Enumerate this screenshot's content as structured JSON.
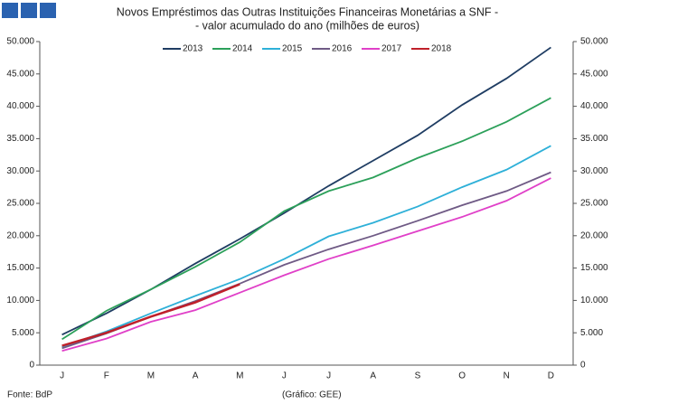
{
  "chart_data": {
    "type": "line",
    "title": "Novos Empréstimos das Outras Instituições Financeiras Monetárias a SNF -",
    "subtitle": "- valor acumulado do ano (milhões de euros)",
    "categories": [
      "J",
      "F",
      "M",
      "A",
      "M",
      "J",
      "J",
      "A",
      "S",
      "O",
      "N",
      "D"
    ],
    "series": [
      {
        "name": "2013",
        "color": "#1f3d63",
        "values": [
          4700,
          8000,
          11700,
          15700,
          19500,
          23500,
          27700,
          31600,
          35500,
          40200,
          44300,
          49100
        ]
      },
      {
        "name": "2014",
        "color": "#2ca05a",
        "values": [
          4000,
          8400,
          11700,
          15200,
          19000,
          23800,
          26900,
          29000,
          32000,
          34600,
          37600,
          41300
        ]
      },
      {
        "name": "2015",
        "color": "#2eb0d8",
        "values": [
          2800,
          5200,
          8000,
          10700,
          13300,
          16400,
          19900,
          22000,
          24500,
          27500,
          30200,
          33900
        ]
      },
      {
        "name": "2016",
        "color": "#6f5a85",
        "values": [
          2600,
          4900,
          7500,
          9900,
          12600,
          15500,
          17900,
          20000,
          22300,
          24700,
          26900,
          29800
        ]
      },
      {
        "name": "2017",
        "color": "#e040c8",
        "values": [
          2200,
          4100,
          6700,
          8500,
          11200,
          13900,
          16400,
          18500,
          20700,
          22900,
          25400,
          28900
        ]
      },
      {
        "name": "2018",
        "color": "#c0202a",
        "values": [
          3000,
          5000,
          7500,
          9700,
          12500,
          null,
          null,
          null,
          null,
          null,
          null,
          null
        ]
      }
    ],
    "ylim": [
      0,
      50000
    ],
    "yticks": [
      0,
      {
        "value": 5000,
        "label": "5.000"
      },
      {
        "value": 10000,
        "label": "10.000"
      },
      {
        "value": 15000,
        "label": "15.000"
      },
      {
        "value": 20000,
        "label": "20.000"
      },
      {
        "value": 25000,
        "label": "25.000"
      },
      {
        "value": 30000,
        "label": "30.000"
      },
      {
        "value": 35000,
        "label": "35.000"
      },
      {
        "value": 40000,
        "label": "40.000"
      },
      {
        "value": 45000,
        "label": "45.000"
      },
      {
        "value": 50000,
        "label": "50.000"
      }
    ],
    "y2lim": [
      0,
      50000
    ],
    "y2ticks": [
      0,
      {
        "value": 5000,
        "label": "5.000"
      },
      {
        "value": 10000,
        "label": "10.000"
      },
      {
        "value": 15000,
        "label": "15.000"
      },
      {
        "value": 20000,
        "label": "20.000"
      },
      {
        "value": 25000,
        "label": "25.000"
      },
      {
        "value": 30000,
        "label": "30.000"
      },
      {
        "value": 35000,
        "label": "35.000"
      },
      {
        "value": 40000,
        "label": "40.000"
      },
      {
        "value": 45000,
        "label": "45.000"
      },
      {
        "value": 50000,
        "label": "50.000"
      }
    ],
    "legend": "top",
    "grid": false,
    "source": "Fonte: BdP",
    "credit": "(Gráfico: GEE)"
  }
}
